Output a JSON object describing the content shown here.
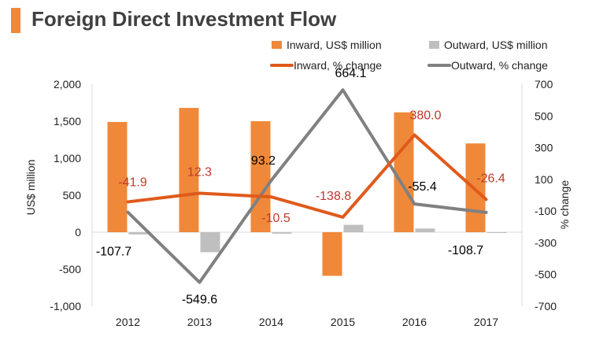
{
  "title": "Foreign Direct Investment Flow",
  "colors": {
    "title_bar": "#f0883a",
    "inward_bar": "#f0883a",
    "outward_bar": "#bfbfbf",
    "inward_line": "#e05a1b",
    "outward_line": "#808080",
    "inward_label": "#c0392b",
    "outward_label": "#000000"
  },
  "chart_data": {
    "type": "bar",
    "categories": [
      "2012",
      "2013",
      "2014",
      "2015",
      "2016",
      "2017"
    ],
    "series": [
      {
        "name": "Inward, US$ million",
        "type": "bar",
        "axis": "left",
        "values": [
          1490,
          1680,
          1500,
          -590,
          1620,
          1200
        ]
      },
      {
        "name": "Outward, US$ million",
        "type": "bar",
        "axis": "left",
        "values": [
          -30,
          -270,
          -20,
          100,
          50,
          0
        ]
      },
      {
        "name": "Inward, % change",
        "type": "line",
        "axis": "right",
        "values": [
          -41.9,
          12.3,
          -10.5,
          -138.8,
          380.0,
          -26.4
        ],
        "labels": [
          "-41.9",
          "12.3",
          "-10.5",
          "-138.8",
          "380.0",
          "-26.4"
        ]
      },
      {
        "name": "Outward, % change",
        "type": "line",
        "axis": "right",
        "values": [
          -107.7,
          -549.6,
          93.2,
          664.1,
          -55.4,
          -108.7
        ],
        "labels": [
          "-107.7",
          "-549.6",
          "93.2",
          "664.1",
          "-55.4",
          "-108.7"
        ]
      }
    ],
    "ylabel": "US$ million",
    "y2label": "% change",
    "ylim": [
      -1000,
      2000
    ],
    "y2lim": [
      -700,
      700
    ],
    "yticks": [
      "2,000",
      "1,500",
      "1,000",
      "500",
      "0",
      "-500",
      "-1,000"
    ],
    "y2ticks": [
      "700",
      "500",
      "300",
      "100",
      "-100",
      "-300",
      "-500",
      "-700"
    ],
    "legend_position": "top-right",
    "grid": false
  }
}
